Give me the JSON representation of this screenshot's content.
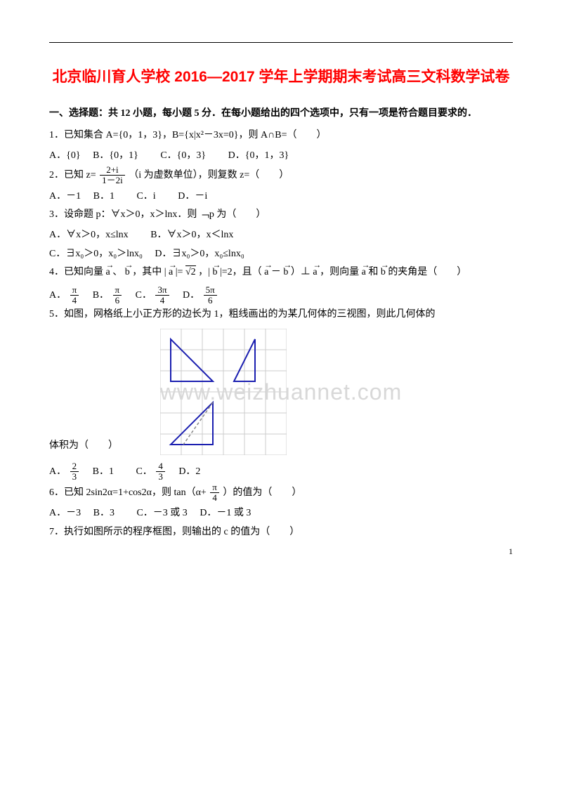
{
  "title": "北京临川育人学校 2016—2017 学年上学期期末考试高三文科数学试卷",
  "section1_header": "一、选择题：共 12 小题，每小题 5 分．在每小题给出的四个选项中，只有一项是符合题目要求的．",
  "q1": {
    "text": "1．已知集合 A={0，1，3}，B={x|x²－3x=0}，则 A∩B=（　　）",
    "A": "A．{0}",
    "B": "B．{0，1}",
    "C": "C．{0，3}",
    "D": "D．{0，1，3}"
  },
  "q2": {
    "prefix_a": "2．已知 z=",
    "frac_num": "2+i",
    "frac_den": "1－2i",
    "suffix": "（i 为虚数单位），则复数 z=（　　）",
    "A": "A．－1",
    "B": "B．1",
    "C": "C．i",
    "D": "D．－i"
  },
  "q3": {
    "text": "3．设命题 p：∀x＞0，x＞lnx．则 ﹁p 为（　　）",
    "A": "A．∀x＞0，x≤lnx",
    "B": "B．∀x＞0，x＜lnx",
    "C": "C．∃x₀＞0，x₀＞lnx₀",
    "D": "D．∃x₀＞0，x₀≤lnx₀"
  },
  "q4": {
    "prefix": "4．已知向量 ",
    "a": "a",
    "sep1": "、",
    "b": "b",
    "mid1": "，其中 |",
    "mid2": "|=",
    "sqrt2": "√2",
    "mid3": "，|",
    "mid4": "|=2，且（",
    "mid5": "－",
    "mid6": "）⊥",
    "mid7": "，则向量",
    "mid8": "和",
    "mid9": "的夹角是（　　）",
    "optA": "A．",
    "optB": "B．",
    "optC": "C．",
    "optD": "D．",
    "pi": "π",
    "d4": "4",
    "d6": "6",
    "n3": "3π",
    "n5": "5π"
  },
  "q5": {
    "text": "5．如图，网格纸上小正方形的边长为 1，粗线画出的为某几何体的三视图，则此几何体的",
    "suffix": "体积为（　　）",
    "optA_pre": "A．",
    "n2": "2",
    "d3": "3",
    "optB": "B．1",
    "optC_pre": "C．",
    "n4": "4",
    "optD": "D．2"
  },
  "q6": {
    "prefix": "6．已知 2sin2α=1+cos2α，则 tan（α+",
    "pi": "π",
    "d4": "4",
    "suffix": "）的值为（　　）",
    "A": "A．－3",
    "B": "B．3",
    "C": "C．－3 或 3",
    "D": "D．－1 或 3"
  },
  "q7": {
    "text": "7．执行如图所示的程序框图，则输出的 c 的值为（　　）"
  },
  "watermark": "www.weizhuannet.com",
  "page_num": "1",
  "figure5": {
    "grid_size": 6,
    "cell": 30,
    "line_color": "#1b1fb0",
    "line_width": 2,
    "dash_color": "#888888",
    "grid_color": "#cccccc"
  }
}
